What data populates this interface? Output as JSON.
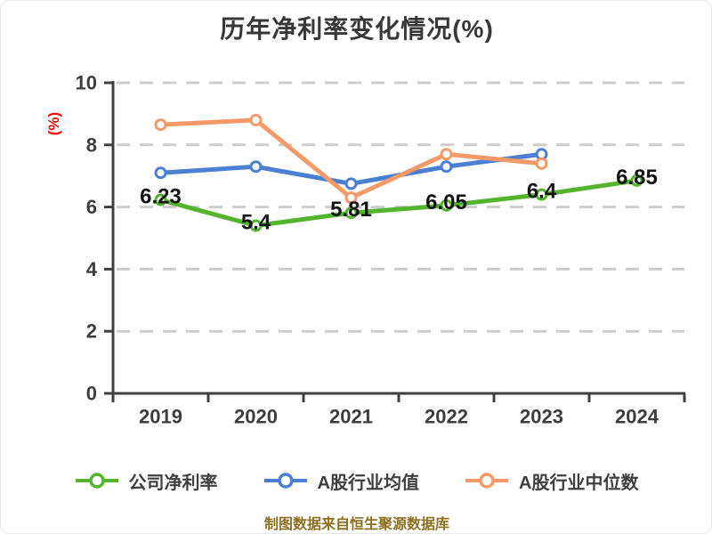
{
  "y_axis_unit": "(%)",
  "footer": "制图数据来自恒生聚源数据库",
  "colors": {
    "company_line": "#54b42e",
    "industry_mean_line": "#4a7fd4",
    "industry_median_line": "#f49a68",
    "axis": "#404040",
    "gridline": "#cdcdcd",
    "title_text": "#383838",
    "tick_text": "#3d3d3d",
    "data_label_text": "#141414",
    "y_unit_text": "#ff0000",
    "footer_text": "#8e6f1f",
    "marker_fill": "#ffffff"
  },
  "chart_data": {
    "type": "line",
    "title": "历年净利率变化情况(%)",
    "categories": [
      "2019",
      "2020",
      "2021",
      "2022",
      "2023",
      "2024"
    ],
    "series": [
      {
        "name": "公司净利率",
        "color": "#54b42e",
        "values": [
          6.23,
          5.4,
          5.81,
          6.05,
          6.4,
          6.85
        ],
        "labels": [
          "6.23",
          "5.4",
          "5.81",
          "6.05",
          "6.4",
          "6.85"
        ]
      },
      {
        "name": "A股行业均值",
        "color": "#4a7fd4",
        "values": [
          7.1,
          7.3,
          6.75,
          7.3,
          7.7
        ]
      },
      {
        "name": "A股行业中位数",
        "color": "#f49a68",
        "values": [
          8.65,
          8.8,
          6.3,
          7.7,
          7.4
        ]
      }
    ],
    "ylim": [
      0,
      10
    ],
    "yticks": [
      0,
      2,
      4,
      6,
      8,
      10
    ],
    "ylabel": "(%)",
    "xlabel": "",
    "grid": "horizontal-dashed",
    "legend_position": "bottom"
  }
}
